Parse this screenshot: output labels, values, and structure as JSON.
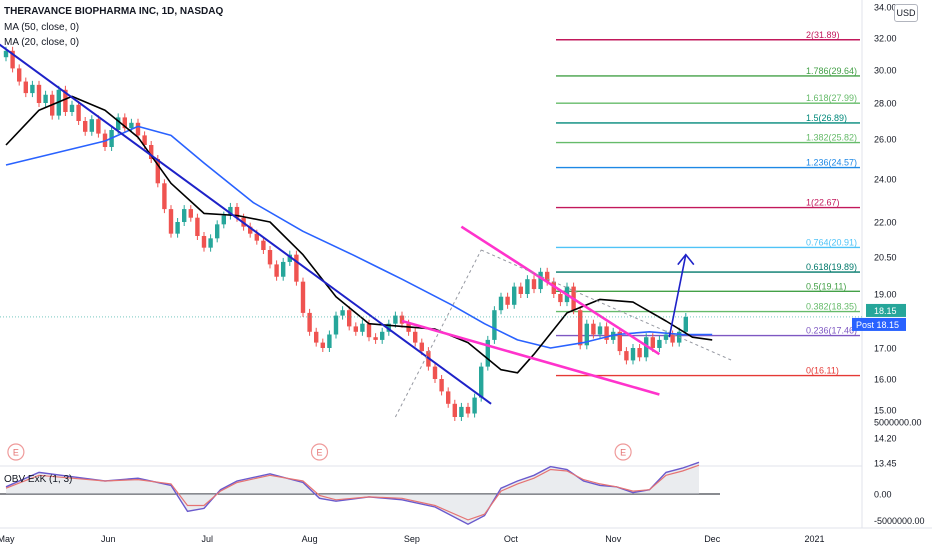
{
  "header": {
    "title": "THERAVANCE BIOPHARMA INC, 1D, NASDAQ",
    "ma50": "MA (50, close, 0)",
    "ma20": "MA (20, close, 0)",
    "currency": "USD",
    "obv_label": "OBV ExK (1, 3)"
  },
  "colors": {
    "up": "#26a69a",
    "down": "#ef5350",
    "ma50": "#2962ff",
    "ma20": "#000000",
    "trendline": "#1e22c8",
    "wedge": "#ff33cc",
    "arrow": "#1e22c8",
    "obv": "#6a5acd"
  },
  "chart_data": {
    "type": "line",
    "price_axis": {
      "ticks": [
        "34.00",
        "32.00",
        "30.00",
        "28.00",
        "26.00",
        "24.00",
        "22.00",
        "20.50",
        "19.00",
        "17.00",
        "16.00",
        "15.00",
        "14.20",
        "13.45"
      ],
      "tick_values": [
        34.0,
        32.0,
        30.0,
        28.0,
        26.0,
        24.0,
        22.0,
        20.5,
        19.0,
        17.0,
        16.0,
        15.0,
        14.2,
        13.45
      ],
      "last_price": "18.15",
      "post_label": "Post",
      "post_price": "18.15"
    },
    "time_axis": {
      "labels": [
        "May",
        "Jun",
        "Jul",
        "Aug",
        "Sep",
        "Oct",
        "Nov",
        "Dec",
        "2021"
      ],
      "label_days": [
        0,
        31,
        61,
        92,
        123,
        153,
        184,
        214,
        245
      ]
    },
    "obv_axis": {
      "ticks": [
        "5000000.00",
        "0.00",
        "-5000000.00"
      ],
      "tick_values": [
        5000000,
        0,
        -5000000
      ]
    },
    "earnings_markers": [
      {
        "label": "E",
        "day": 3
      },
      {
        "label": "E",
        "day": 95
      },
      {
        "label": "E",
        "day": 187
      }
    ],
    "fib_levels": [
      {
        "label": "2(31.89)",
        "value": 31.89,
        "color": "#c2185b"
      },
      {
        "label": "1.786(29.64)",
        "value": 29.64,
        "color": "#43a047"
      },
      {
        "label": "1.618(27.99)",
        "value": 27.99,
        "color": "#66bb6a"
      },
      {
        "label": "1.5(26.89)",
        "value": 26.89,
        "color": "#00897b"
      },
      {
        "label": "1.382(25.82)",
        "value": 25.82,
        "color": "#66bb6a"
      },
      {
        "label": "1.236(24.57)",
        "value": 24.57,
        "color": "#1e88e5"
      },
      {
        "label": "1(22.67)",
        "value": 22.67,
        "color": "#c2185b"
      },
      {
        "label": "0.764(20.91)",
        "value": 20.91,
        "color": "#4fc3f7"
      },
      {
        "label": "0.618(19.89)",
        "value": 19.89,
        "color": "#00796b"
      },
      {
        "label": "0.5(19.11)",
        "value": 19.11,
        "color": "#43a047"
      },
      {
        "label": "0.382(18.35)",
        "value": 18.35,
        "color": "#66bb6a"
      },
      {
        "label": "0.236(17.46)",
        "value": 17.46,
        "color": "#7e57c2"
      },
      {
        "label": "0(16.11)",
        "value": 16.11,
        "color": "#e53935"
      }
    ],
    "ma50": [
      [
        0,
        24.7
      ],
      [
        15,
        25.3
      ],
      [
        30,
        25.9
      ],
      [
        40,
        26.7
      ],
      [
        50,
        26.2
      ],
      [
        60,
        24.8
      ],
      [
        75,
        22.9
      ],
      [
        90,
        21.6
      ],
      [
        105,
        20.6
      ],
      [
        120,
        19.6
      ],
      [
        135,
        18.6
      ],
      [
        145,
        17.9
      ],
      [
        155,
        17.3
      ],
      [
        165,
        17.0
      ],
      [
        175,
        17.2
      ],
      [
        185,
        17.5
      ],
      [
        195,
        17.6
      ],
      [
        205,
        17.5
      ],
      [
        214,
        17.5
      ]
    ],
    "ma20": [
      [
        0,
        25.7
      ],
      [
        10,
        27.6
      ],
      [
        20,
        28.4
      ],
      [
        30,
        27.6
      ],
      [
        40,
        26.1
      ],
      [
        50,
        23.8
      ],
      [
        60,
        22.4
      ],
      [
        70,
        22.3
      ],
      [
        80,
        22.0
      ],
      [
        90,
        20.6
      ],
      [
        100,
        18.9
      ],
      [
        110,
        17.9
      ],
      [
        120,
        17.8
      ],
      [
        130,
        17.7
      ],
      [
        140,
        17.2
      ],
      [
        150,
        16.3
      ],
      [
        155,
        16.2
      ],
      [
        160,
        16.8
      ],
      [
        170,
        18.3
      ],
      [
        180,
        18.8
      ],
      [
        190,
        18.7
      ],
      [
        200,
        18.0
      ],
      [
        208,
        17.4
      ],
      [
        214,
        17.3
      ]
    ],
    "candles": [
      [
        0,
        30.8,
        31.2
      ],
      [
        2,
        31.2,
        30.1
      ],
      [
        4,
        30.1,
        29.3
      ],
      [
        6,
        29.3,
        28.6
      ],
      [
        8,
        28.6,
        29.1
      ],
      [
        10,
        29.1,
        28.0
      ],
      [
        12,
        28.0,
        28.5
      ],
      [
        14,
        28.5,
        27.3
      ],
      [
        16,
        27.3,
        28.8
      ],
      [
        18,
        28.8,
        27.5
      ],
      [
        20,
        27.5,
        27.9
      ],
      [
        22,
        27.9,
        27.0
      ],
      [
        24,
        27.0,
        26.4
      ],
      [
        26,
        26.4,
        27.1
      ],
      [
        28,
        27.1,
        26.3
      ],
      [
        30,
        26.3,
        25.6
      ],
      [
        32,
        25.6,
        26.5
      ],
      [
        34,
        26.5,
        27.2
      ],
      [
        36,
        27.2,
        26.6
      ],
      [
        38,
        26.6,
        26.9
      ],
      [
        40,
        26.9,
        26.2
      ],
      [
        42,
        26.2,
        25.7
      ],
      [
        44,
        25.7,
        25.0
      ],
      [
        46,
        25.0,
        23.8
      ],
      [
        48,
        23.8,
        22.6
      ],
      [
        50,
        22.6,
        21.5
      ],
      [
        52,
        21.5,
        22.0
      ],
      [
        54,
        22.0,
        22.6
      ],
      [
        56,
        22.6,
        22.2
      ],
      [
        58,
        22.2,
        21.4
      ],
      [
        60,
        21.4,
        20.9
      ],
      [
        62,
        20.9,
        21.3
      ],
      [
        64,
        21.3,
        21.9
      ],
      [
        66,
        21.9,
        22.3
      ],
      [
        68,
        22.3,
        22.7
      ],
      [
        70,
        22.7,
        22.2
      ],
      [
        72,
        22.2,
        21.8
      ],
      [
        74,
        21.8,
        21.5
      ],
      [
        76,
        21.5,
        21.2
      ],
      [
        78,
        21.2,
        20.8
      ],
      [
        80,
        20.8,
        20.2
      ],
      [
        82,
        20.2,
        19.7
      ],
      [
        84,
        19.7,
        20.3
      ],
      [
        86,
        20.3,
        20.6
      ],
      [
        88,
        20.6,
        19.5
      ],
      [
        90,
        19.5,
        18.3
      ],
      [
        92,
        18.3,
        17.6
      ],
      [
        94,
        17.6,
        17.2
      ],
      [
        96,
        17.2,
        17.0
      ],
      [
        98,
        17.0,
        17.5
      ],
      [
        100,
        17.5,
        18.2
      ],
      [
        102,
        18.2,
        18.4
      ],
      [
        104,
        18.4,
        17.8
      ],
      [
        106,
        17.8,
        17.6
      ],
      [
        108,
        17.6,
        17.9
      ],
      [
        110,
        17.9,
        17.4
      ],
      [
        112,
        17.4,
        17.3
      ],
      [
        114,
        17.3,
        17.6
      ],
      [
        116,
        17.6,
        17.9
      ],
      [
        118,
        17.9,
        18.2
      ],
      [
        120,
        18.2,
        17.9
      ],
      [
        122,
        17.9,
        17.6
      ],
      [
        124,
        17.6,
        17.2
      ],
      [
        126,
        17.2,
        16.9
      ],
      [
        128,
        16.9,
        16.4
      ],
      [
        130,
        16.4,
        16.0
      ],
      [
        132,
        16.0,
        15.6
      ],
      [
        134,
        15.6,
        15.2
      ],
      [
        136,
        15.2,
        14.8
      ],
      [
        138,
        14.8,
        15.1
      ],
      [
        140,
        15.1,
        14.9
      ],
      [
        142,
        14.9,
        15.4
      ],
      [
        144,
        15.4,
        16.4
      ],
      [
        146,
        16.4,
        17.3
      ],
      [
        148,
        17.3,
        18.4
      ],
      [
        150,
        18.4,
        18.9
      ],
      [
        152,
        18.9,
        18.6
      ],
      [
        154,
        18.6,
        19.3
      ],
      [
        156,
        19.3,
        19.0
      ],
      [
        158,
        19.0,
        19.6
      ],
      [
        160,
        19.6,
        19.2
      ],
      [
        162,
        19.2,
        19.9
      ],
      [
        164,
        19.9,
        19.5
      ],
      [
        166,
        19.5,
        19.0
      ],
      [
        168,
        19.0,
        18.7
      ],
      [
        170,
        18.7,
        19.3
      ],
      [
        172,
        19.3,
        18.4
      ],
      [
        174,
        18.4,
        17.1
      ],
      [
        176,
        17.1,
        17.9
      ],
      [
        178,
        17.9,
        17.5
      ],
      [
        180,
        17.5,
        17.8
      ],
      [
        182,
        17.8,
        17.3
      ],
      [
        184,
        17.3,
        17.6
      ],
      [
        186,
        17.6,
        16.9
      ],
      [
        188,
        16.9,
        16.6
      ],
      [
        190,
        16.6,
        17.0
      ],
      [
        192,
        17.0,
        16.7
      ],
      [
        194,
        16.7,
        17.4
      ],
      [
        196,
        17.4,
        17.0
      ],
      [
        198,
        17.0,
        17.3
      ],
      [
        200,
        17.3,
        17.5
      ],
      [
        202,
        17.5,
        17.2
      ],
      [
        204,
        17.2,
        17.6
      ],
      [
        206,
        17.6,
        18.15
      ]
    ],
    "obv": [
      [
        0,
        0.5
      ],
      [
        10,
        1.5
      ],
      [
        20,
        1.2
      ],
      [
        30,
        0.9
      ],
      [
        40,
        1.1
      ],
      [
        50,
        0.6
      ],
      [
        55,
        -1.2
      ],
      [
        60,
        -1.0
      ],
      [
        65,
        0.3
      ],
      [
        70,
        0.9
      ],
      [
        80,
        1.4
      ],
      [
        90,
        0.8
      ],
      [
        95,
        -0.3
      ],
      [
        100,
        -0.5
      ],
      [
        110,
        -0.2
      ],
      [
        120,
        -0.4
      ],
      [
        130,
        -0.9
      ],
      [
        140,
        -2.1
      ],
      [
        145,
        -1.5
      ],
      [
        150,
        0.4
      ],
      [
        155,
        0.9
      ],
      [
        160,
        1.3
      ],
      [
        165,
        1.9
      ],
      [
        170,
        1.7
      ],
      [
        175,
        0.9
      ],
      [
        180,
        0.6
      ],
      [
        185,
        0.5
      ],
      [
        190,
        0.1
      ],
      [
        195,
        0.3
      ],
      [
        200,
        1.5
      ],
      [
        205,
        1.8
      ],
      [
        210,
        2.2
      ]
    ],
    "obv_signal": [
      [
        0,
        0.4
      ],
      [
        10,
        1.3
      ],
      [
        20,
        1.1
      ],
      [
        30,
        0.9
      ],
      [
        40,
        1.0
      ],
      [
        50,
        0.7
      ],
      [
        55,
        -0.8
      ],
      [
        60,
        -0.8
      ],
      [
        65,
        0.2
      ],
      [
        70,
        0.8
      ],
      [
        80,
        1.3
      ],
      [
        90,
        0.9
      ],
      [
        95,
        -0.1
      ],
      [
        100,
        -0.4
      ],
      [
        110,
        -0.2
      ],
      [
        120,
        -0.3
      ],
      [
        130,
        -0.8
      ],
      [
        140,
        -1.8
      ],
      [
        145,
        -1.4
      ],
      [
        150,
        0.2
      ],
      [
        155,
        0.7
      ],
      [
        160,
        1.1
      ],
      [
        165,
        1.7
      ],
      [
        170,
        1.6
      ],
      [
        175,
        1.0
      ],
      [
        180,
        0.7
      ],
      [
        185,
        0.5
      ],
      [
        190,
        0.2
      ],
      [
        195,
        0.3
      ],
      [
        200,
        1.3
      ],
      [
        205,
        1.6
      ],
      [
        210,
        2.0
      ]
    ],
    "drawings": {
      "downtrend": [
        [
          -2,
          31.6
        ],
        [
          147,
          15.2
        ]
      ],
      "wedge_upper": [
        [
          138,
          21.8
        ],
        [
          198,
          16.8
        ]
      ],
      "wedge_lower": [
        [
          120,
          18.0
        ],
        [
          198,
          15.5
        ]
      ],
      "dashed_rise": [
        [
          118,
          14.8
        ],
        [
          144,
          20.8
        ]
      ],
      "dashed_fall": [
        [
          144,
          20.8
        ],
        [
          220,
          16.6
        ]
      ],
      "arrow": [
        [
          201,
          17.4
        ],
        [
          206,
          20.6
        ],
        [
          208,
          20.1
        ]
      ]
    }
  }
}
